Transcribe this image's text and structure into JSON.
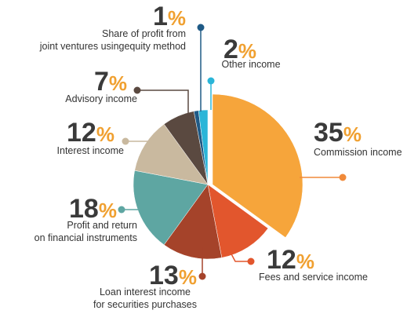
{
  "chart_data": {
    "type": "pie",
    "unit": "%",
    "categories": [
      [
        "Commission income"
      ],
      [
        "Fees and service income"
      ],
      [
        "Loan interest income",
        "for securities purchases"
      ],
      [
        "Profit and return",
        "on financial instruments"
      ],
      [
        "Interest income"
      ],
      [
        "Advisory income"
      ],
      [
        "Share of profit from",
        "joint ventures usingequity method"
      ],
      [
        "Other income"
      ]
    ],
    "values": [
      35,
      12,
      13,
      18,
      12,
      7,
      1,
      2
    ],
    "colors": [
      "#f6a53b",
      "#e2562d",
      "#a5432a",
      "#5ea6a2",
      "#c9b99f",
      "#5a4940",
      "#1f5a86",
      "#2ab5d8"
    ]
  }
}
